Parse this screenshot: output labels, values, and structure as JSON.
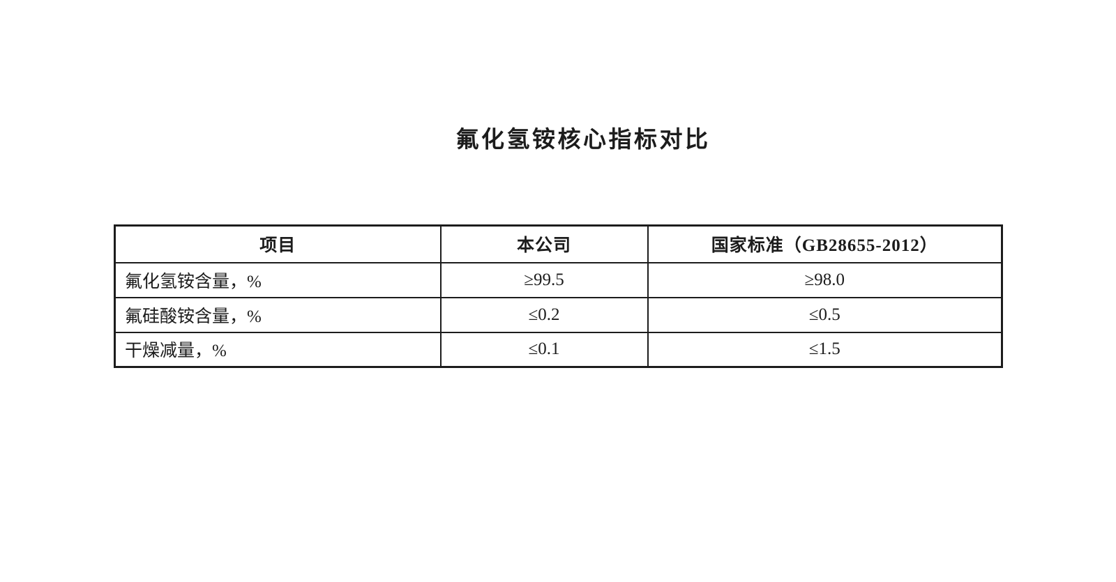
{
  "document": {
    "title": "氟化氢铵核心指标对比"
  },
  "table": {
    "columns": [
      "项目",
      "本公司",
      "国家标准（GB28655-2012）"
    ],
    "rows": [
      {
        "item": "氟化氢铵含量，%",
        "company": "≥99.5",
        "standard": "≥98.0"
      },
      {
        "item": "氟硅酸铵含量，%",
        "company": "≤0.2",
        "standard": "≤0.5"
      },
      {
        "item": "干燥减量，%",
        "company": "≤0.1",
        "standard": "≤1.5"
      }
    ]
  },
  "colors": {
    "page_background": "#ffffff",
    "text": "#1c1c1c",
    "table_border": "#1c1c1c"
  }
}
